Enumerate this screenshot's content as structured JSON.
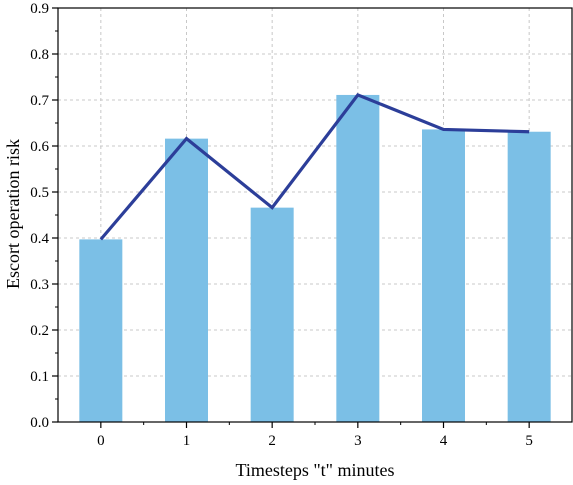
{
  "chart_data": {
    "type": "bar",
    "categories": [
      "0",
      "1",
      "2",
      "3",
      "4",
      "5"
    ],
    "series": [
      {
        "type": "bar",
        "values": [
          0.397,
          0.616,
          0.466,
          0.711,
          0.636,
          0.631
        ]
      },
      {
        "type": "line",
        "values": [
          0.397,
          0.616,
          0.466,
          0.711,
          0.636,
          0.631
        ]
      }
    ],
    "title": "",
    "xlabel": "Timesteps \"t\" minutes",
    "ylabel": "Escort operation risk",
    "ylim": [
      0,
      0.9
    ],
    "yticks": [
      "0.0",
      "0.1",
      "0.2",
      "0.3",
      "0.4",
      "0.5",
      "0.6",
      "0.7",
      "0.8",
      "0.9"
    ],
    "grid": true,
    "colors": {
      "bar": "#7bbfe6",
      "line": "#2c3e99",
      "grid": "#c8c8c8",
      "axis": "#000000"
    }
  }
}
